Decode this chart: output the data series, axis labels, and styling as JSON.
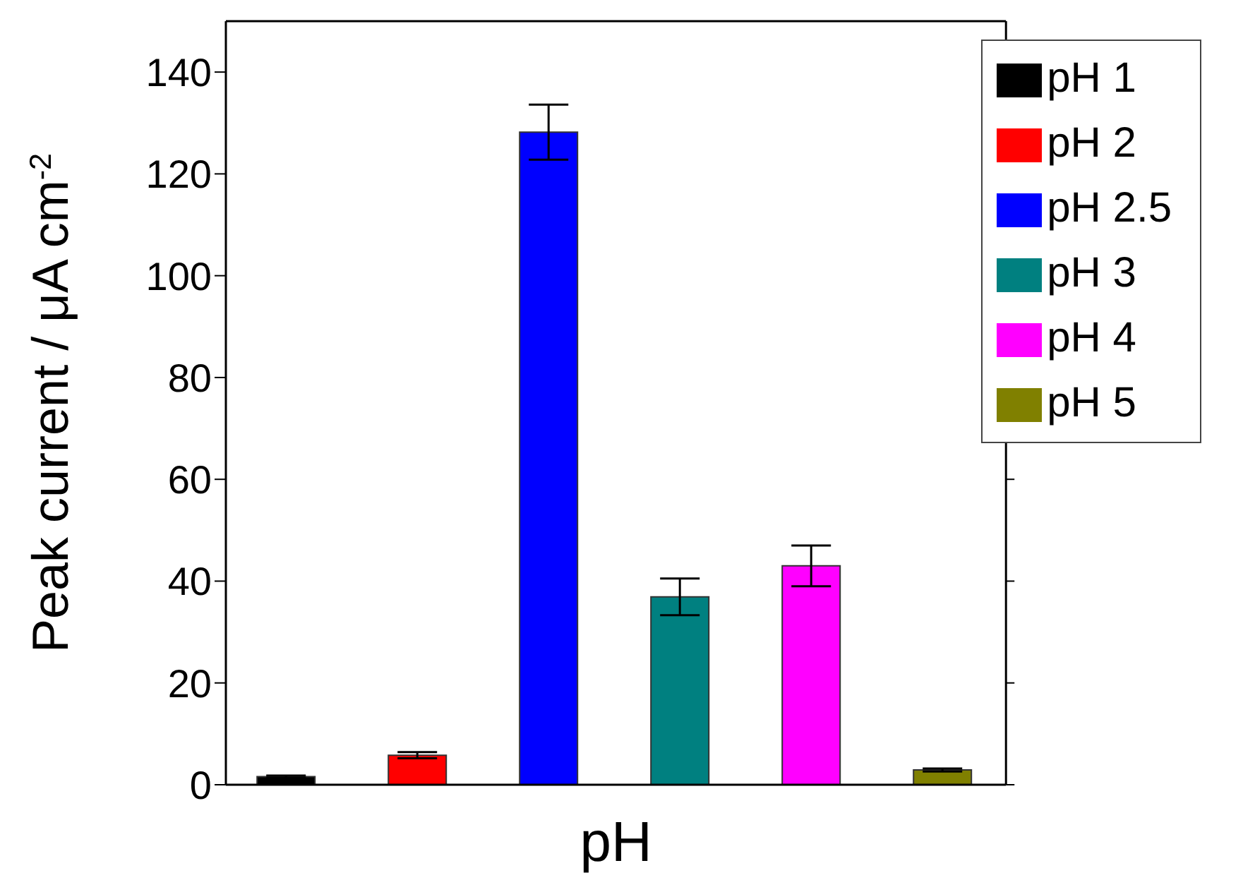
{
  "chart_data": {
    "type": "bar",
    "xlabel": "pH",
    "ylabel": "Peak current  /  μA cm$^{-2}$",
    "categories": [
      null
    ],
    "series": [
      {
        "name": "pH 1",
        "color": "#000000",
        "values": [
          1.6
        ],
        "errors": [
          0.2
        ]
      },
      {
        "name": "pH 2",
        "color": "#ff0000",
        "values": [
          5.8
        ],
        "errors": [
          0.6
        ]
      },
      {
        "name": "pH 2.5",
        "color": "#0000ff",
        "values": [
          128.2
        ],
        "errors": [
          5.4
        ]
      },
      {
        "name": "pH 3",
        "color": "#008080",
        "values": [
          36.9
        ],
        "errors": [
          3.6
        ]
      },
      {
        "name": "pH 4",
        "color": "#ff00ff",
        "values": [
          43
        ],
        "errors": [
          4
        ]
      },
      {
        "name": "pH 5",
        "color": "#808000",
        "values": [
          2.9
        ],
        "errors": [
          0.3
        ]
      }
    ],
    "ylim": [
      0,
      150
    ],
    "yticks": [
      0,
      20,
      40,
      60,
      80,
      100,
      120,
      140
    ],
    "tick_labels": "y",
    "legend": "top right",
    "grid": false
  }
}
